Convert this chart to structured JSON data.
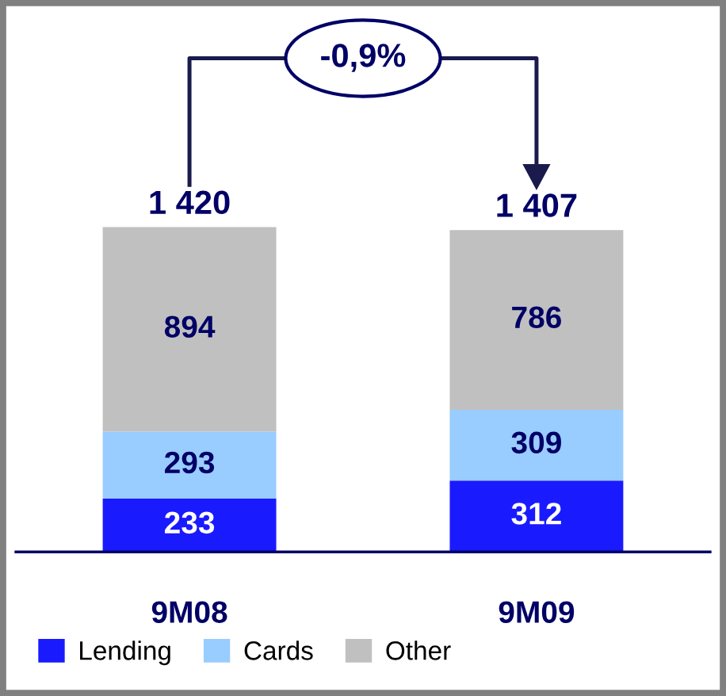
{
  "chart_data": {
    "type": "bar",
    "stacked": true,
    "data_labels": true,
    "categories": [
      "9M08",
      "9M09"
    ],
    "series": [
      {
        "name": "Lending",
        "color": "#1a1aff",
        "values": [
          233,
          312
        ]
      },
      {
        "name": "Cards",
        "color": "#99ccff",
        "values": [
          293,
          309
        ]
      },
      {
        "name": "Other",
        "color": "#c0c0c0",
        "values": [
          894,
          786
        ]
      }
    ],
    "totals": [
      "1 420",
      "1 407"
    ],
    "annotations": [
      "-0,9%"
    ],
    "legend": "bottom left",
    "grid": false
  }
}
